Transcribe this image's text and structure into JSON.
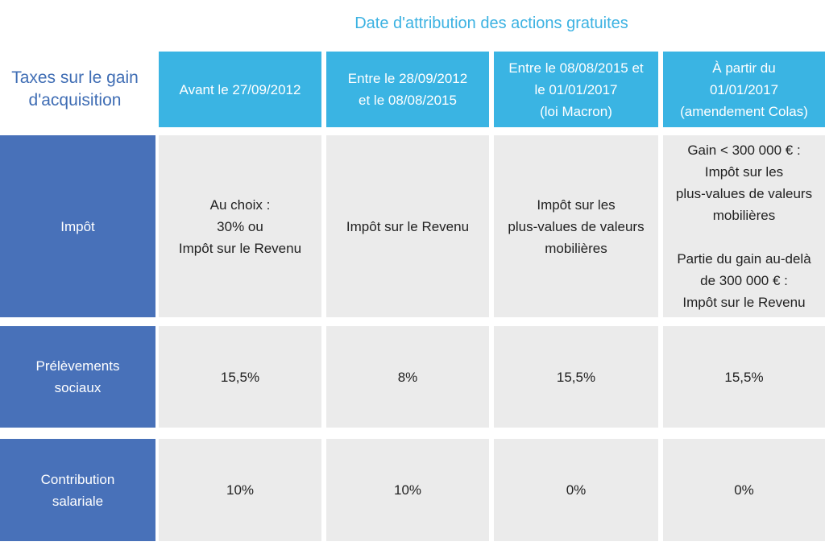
{
  "title": "Date d'attribution des actions gratuites",
  "corner_label": "Taxes sur le gain\nd'acquisition",
  "columns": [
    "Avant le 27/09/2012",
    "Entre le 28/09/2012\net le 08/08/2015",
    "Entre le 08/08/2015 et\nle 01/01/2017\n(loi Macron)",
    "À partir du\n01/01/2017\n(amendement Colas)"
  ],
  "rows": [
    {
      "label": "Impôt",
      "cells": [
        "Au choix :\n30% ou\nImpôt sur le Revenu",
        "Impôt sur le Revenu",
        "Impôt sur les\nplus-values de valeurs\nmobilières",
        "Gain < 300 000 € :\nImpôt sur les\nplus-values de valeurs\nmobilières\n\nPartie du gain au-delà\nde 300 000 € :\nImpôt sur le Revenu"
      ]
    },
    {
      "label": "Prélèvements\nsociaux",
      "cells": [
        "15,5%",
        "8%",
        "15,5%",
        "15,5%"
      ]
    },
    {
      "label": "Contribution\nsalariale",
      "cells": [
        "10%",
        "10%",
        "0%",
        "0%"
      ]
    }
  ],
  "colors": {
    "header_bg": "#3ab4e3",
    "row_label_bg": "#4871b9",
    "cell_bg": "#ebebeb",
    "title_color": "#3cb2e2",
    "corner_color": "#3f6db4"
  }
}
